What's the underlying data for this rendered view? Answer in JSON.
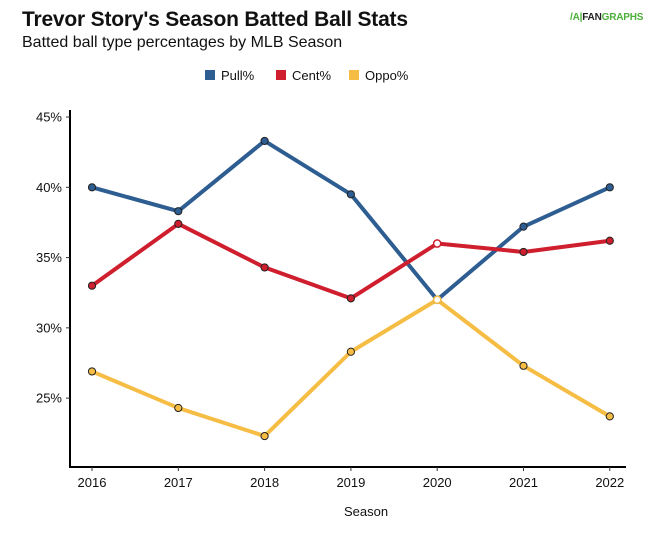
{
  "header": {
    "title": "Trevor Story's Season Batted Ball Stats",
    "subtitle": "Batted ball type percentages by MLB Season",
    "logo_mark": "/A|",
    "logo_fan": "FAN",
    "logo_graphs": "GRAPHS"
  },
  "chart_data": {
    "type": "line",
    "title": "Trevor Story's Season Batted Ball Stats",
    "subtitle": "Batted ball type percentages by MLB Season",
    "xlabel": "Season",
    "ylabel": "",
    "categories": [
      "2016",
      "2017",
      "2018",
      "2019",
      "2020",
      "2021",
      "2022"
    ],
    "yticks": [
      25,
      30,
      35,
      40,
      45
    ],
    "ytick_labels": [
      "25%",
      "30%",
      "35%",
      "40%",
      "45%"
    ],
    "ylim": [
      20.1,
      45.5
    ],
    "grid": false,
    "legend_position": "top-center",
    "series": [
      {
        "name": "Pull%",
        "color": "#2d5d91",
        "values": [
          40.0,
          38.3,
          43.3,
          39.5,
          32.0,
          37.2,
          40.0
        ]
      },
      {
        "name": "Cent%",
        "color": "#cf1f2e",
        "values": [
          33.0,
          37.4,
          34.3,
          32.1,
          36.0,
          35.4,
          36.2
        ]
      },
      {
        "name": "Oppo%",
        "color": "#f6bd45",
        "values": [
          26.9,
          24.3,
          22.3,
          28.3,
          32.0,
          27.3,
          23.7
        ]
      }
    ],
    "highlighted_index": 4
  }
}
